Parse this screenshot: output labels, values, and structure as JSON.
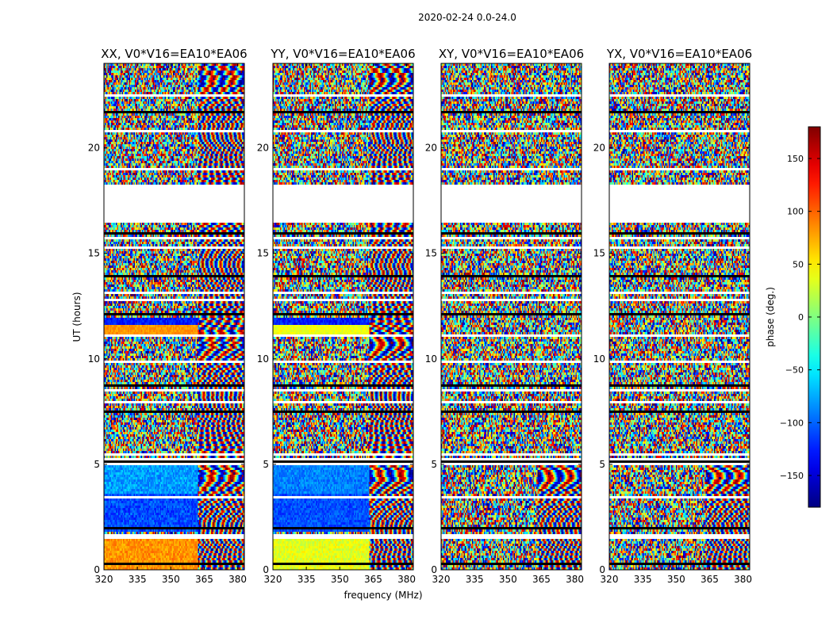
{
  "figure": {
    "suptitle": "2020-02-24 0.0-24.0"
  },
  "chart_data": {
    "type": "heatmap",
    "description_of_values": "phase of visibility per frequency channel vs time",
    "panels": [
      {
        "title": "XX, V0*V16=EA10*EA06",
        "pol": "XX"
      },
      {
        "title": "YY, V0*V16=EA10*EA06",
        "pol": "YY"
      },
      {
        "title": "XY, V0*V16=EA10*EA06",
        "pol": "XY"
      },
      {
        "title": "YX, V0*V16=EA10*EA06",
        "pol": "YX"
      }
    ],
    "xlabel": "frequency (MHz)",
    "ylabel": "UT (hours)",
    "xlim": [
      320,
      383
    ],
    "ylim": [
      0,
      24
    ],
    "xticks": [
      320,
      335,
      350,
      365,
      380
    ],
    "yticks": [
      0,
      5,
      10,
      15,
      20
    ],
    "colorbar": {
      "label": "phase (deg.)",
      "range": [
        -180,
        180
      ],
      "ticks": [
        150,
        100,
        50,
        0,
        -50,
        -100,
        -150
      ],
      "tick_labels": [
        "150",
        "100",
        "50",
        "0",
        "−50",
        "−100",
        "−150"
      ],
      "colormap": "jet"
    },
    "data_gaps_ut_hours": [
      [
        16.5,
        18.2
      ]
    ],
    "flagged_rows_ut_hours": [
      0.3,
      1.6,
      1.7,
      2.0,
      3.5,
      5.1,
      5.2,
      5.3,
      5.5,
      7.6,
      8.0,
      8.6,
      8.8,
      9.9,
      11.2,
      12.2,
      12.8,
      13.2,
      14.0,
      15.3,
      15.8,
      16.0,
      19.0,
      20.8,
      21.7,
      22.5
    ]
  }
}
